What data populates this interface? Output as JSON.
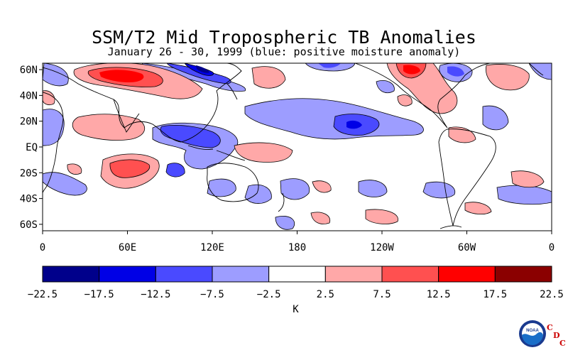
{
  "title": "SSM/T2 Mid Tropospheric TB Anomalies",
  "subtitle": "January 26 - 30, 1999 (blue: positive moisture anomaly)",
  "map": {
    "lat_labels": [
      "60N",
      "40N",
      "20N",
      "EQ",
      "20S",
      "40S",
      "60S"
    ],
    "lon_labels": [
      "0",
      "60E",
      "120E",
      "180",
      "120W",
      "60W",
      "0"
    ],
    "lat_range": [
      -65,
      65
    ],
    "lon_range": [
      0,
      360
    ]
  },
  "colorbar": {
    "unit": "K",
    "ticks": [
      "-22.5",
      "-17.5",
      "-12.5",
      "-7.5",
      "-2.5",
      "2.5",
      "7.5",
      "12.5",
      "17.5",
      "22.5"
    ],
    "colors": [
      "#00008b",
      "#0000e6",
      "#4a4aff",
      "#9d9dff",
      "#ffffff",
      "#ffa8a8",
      "#ff5050",
      "#ff0000",
      "#8b0000"
    ]
  },
  "logo": {
    "noaa": "NOAA",
    "cdc_letters": [
      "C",
      "D",
      "C"
    ]
  }
}
